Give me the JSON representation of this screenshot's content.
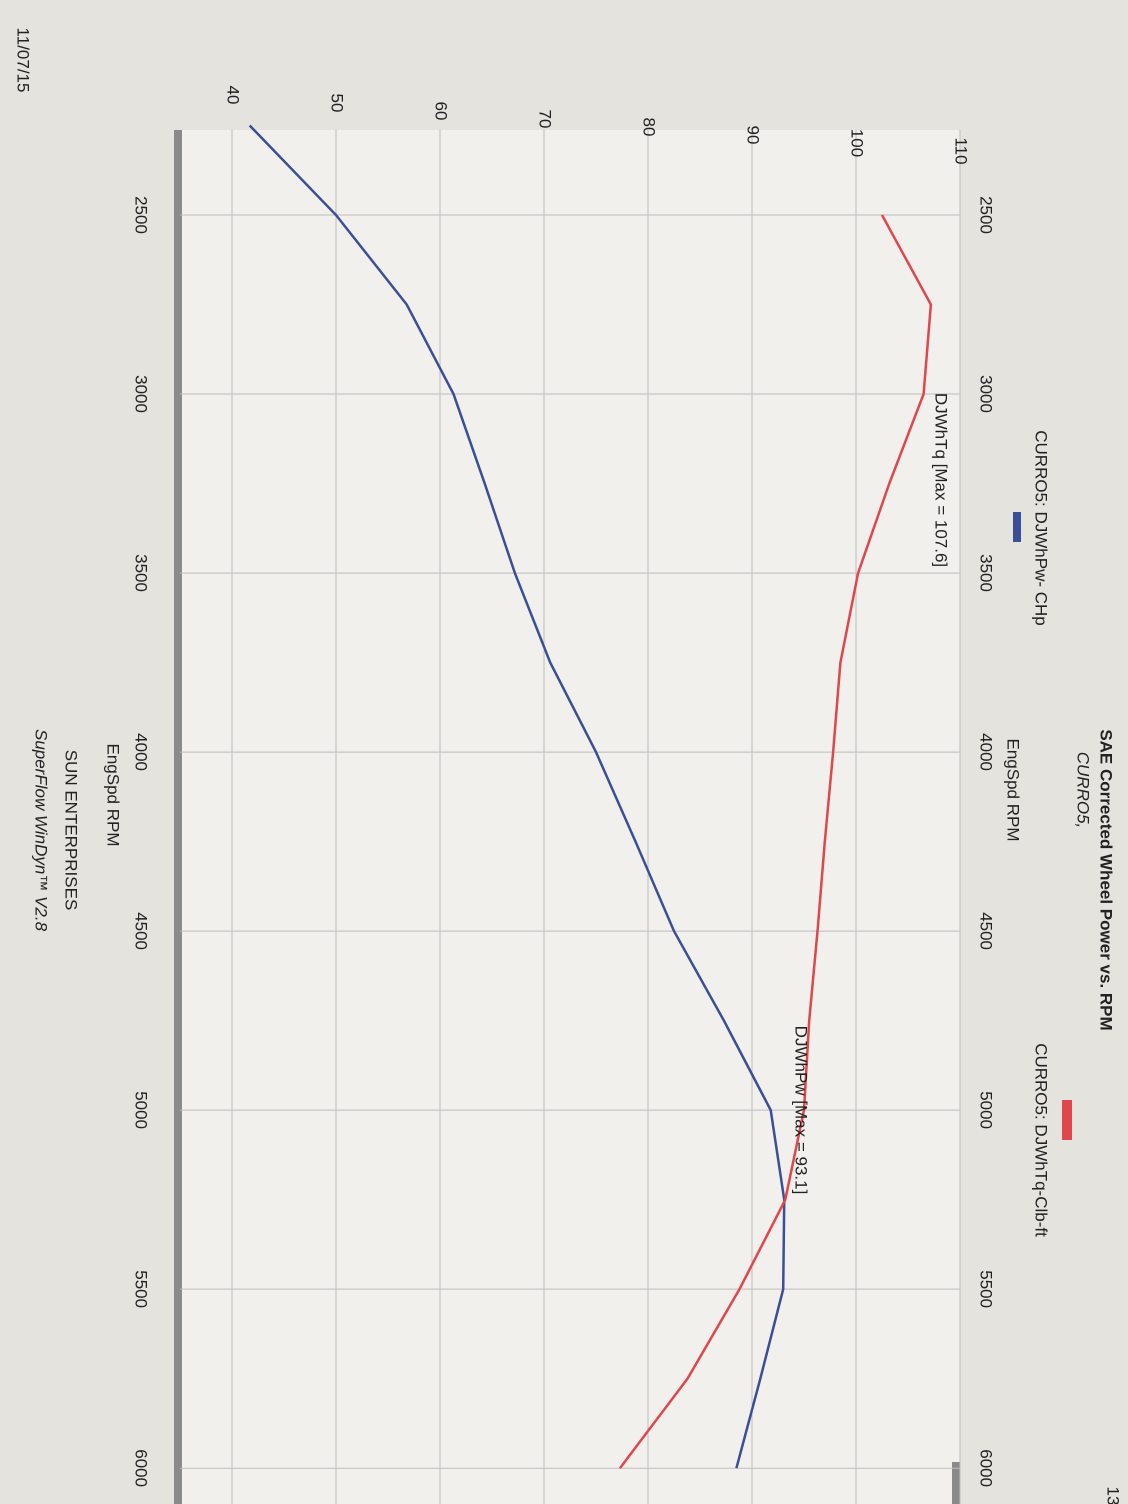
{
  "chart_data": {
    "type": "line",
    "title": "SAE Corrected Wheel Power vs. RPM",
    "subtitle": "CURRO5,",
    "x_label": "EngSpd  RPM",
    "x": [
      2250,
      2500,
      2750,
      3000,
      3250,
      3500,
      3750,
      4000,
      4250,
      4500,
      4750,
      5000,
      5250,
      5500,
      5750,
      6000
    ],
    "series": [
      {
        "name": "CURRO5: DJWhPw- CHp",
        "color": "#3a4f96",
        "values": [
          41.7,
          50,
          56.8,
          61.3,
          64.3,
          67.2,
          70.6,
          75,
          78.8,
          82.5,
          87.3,
          91.8,
          93.1,
          93,
          90.8,
          88.5
        ]
      },
      {
        "name": "CURRO5: DJWhTq-Clb-ft",
        "color": "#e0474c",
        "values": [
          null,
          102.5,
          107.2,
          106.5,
          103.2,
          100.2,
          98.5,
          97.8,
          97,
          96.3,
          95.5,
          95,
          93.2,
          88.8,
          83.8,
          77.3
        ]
      }
    ],
    "annotations": [
      "DJWhTq [Max = 107.6]",
      "DJWhPw [Max = 93.1]"
    ],
    "footer": [
      "SUN ENTERPRISES",
      "SuperFlow WinDyn™ V2.8"
    ],
    "date": "11/07/15",
    "page": "13",
    "xlim": [
      2250,
      6100
    ],
    "xticks": [
      2500,
      3000,
      3500,
      4000,
      4500,
      5000,
      5500,
      6000
    ],
    "ylim": [
      35,
      110
    ],
    "yticks": [
      40,
      50,
      60,
      70,
      80,
      90,
      100,
      110
    ],
    "grid": true
  }
}
